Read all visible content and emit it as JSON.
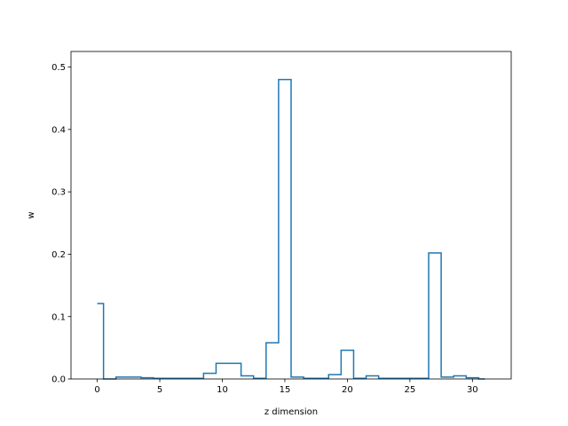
{
  "chart_data": {
    "type": "line",
    "drawstyle": "steps-mid",
    "title": "",
    "xlabel": "z dimension",
    "ylabel": "w",
    "xlim": [
      -2.1,
      33.1
    ],
    "ylim": [
      0,
      0.525
    ],
    "x_ticks": [
      0,
      5,
      10,
      15,
      20,
      25,
      30
    ],
    "y_ticks": [
      0.0,
      0.1,
      0.2,
      0.3,
      0.4,
      0.5
    ],
    "x_tick_labels": [
      "0",
      "5",
      "10",
      "15",
      "20",
      "25",
      "30"
    ],
    "y_tick_labels": [
      "0.0",
      "0.1",
      "0.2",
      "0.3",
      "0.4",
      "0.5"
    ],
    "grid": false,
    "legend": "none",
    "series": [
      {
        "color": "#1f77b4",
        "x": [
          0,
          1,
          2,
          3,
          4,
          5,
          6,
          7,
          8,
          9,
          10,
          11,
          12,
          13,
          14,
          15,
          16,
          17,
          18,
          19,
          20,
          21,
          22,
          23,
          24,
          25,
          26,
          27,
          28,
          29,
          30,
          31
        ],
        "y": [
          0.121,
          0.0,
          0.003,
          0.003,
          0.002,
          0.001,
          0.001,
          0.001,
          0.001,
          0.009,
          0.025,
          0.025,
          0.005,
          0.001,
          0.058,
          0.48,
          0.003,
          0.001,
          0.001,
          0.007,
          0.046,
          0.001,
          0.005,
          0.001,
          0.001,
          0.001,
          0.001,
          0.202,
          0.003,
          0.005,
          0.002,
          0.0
        ]
      }
    ]
  }
}
